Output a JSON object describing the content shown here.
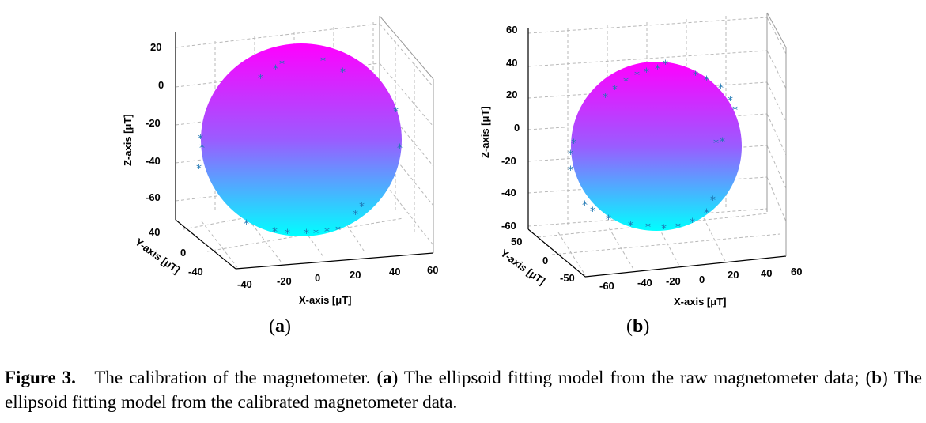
{
  "panels": [
    {
      "id": "a",
      "label": "a",
      "xlabel": "X-axis [μT]",
      "ylabel": "Y-axis [μT]",
      "zlabel": "Z-axis [μT]",
      "x_ticks": [
        "-40",
        "-20",
        "0",
        "20",
        "40",
        "60"
      ],
      "y_ticks": [
        "40",
        "0",
        "-40"
      ],
      "z_ticks": [
        "20",
        "0",
        "-20",
        "-40",
        "-60"
      ]
    },
    {
      "id": "b",
      "label": "b",
      "xlabel": "X-axis [μT]",
      "ylabel": "Y-axis [μT]",
      "zlabel": "Z-axis [μT]",
      "x_ticks": [
        "-60",
        "-40",
        "-20",
        "0",
        "20",
        "40",
        "60"
      ],
      "y_ticks": [
        "50",
        "0",
        "-50"
      ],
      "z_ticks": [
        "60",
        "40",
        "20",
        "0",
        "-20",
        "-40",
        "-60"
      ]
    }
  ],
  "colors": {
    "sphere_top": "#ff00ff",
    "sphere_bottom": "#00ffff",
    "marker": "#1f77b4"
  },
  "caption": {
    "head": "Figure 3.",
    "text_1": "The calibration of the magnetometer. (",
    "a": "a",
    "text_2": ") The ellipsoid fitting model from the raw magnetometer data; (",
    "b": "b",
    "text_3": ") The ellipsoid fitting model from the calibrated magnetometer data."
  }
}
